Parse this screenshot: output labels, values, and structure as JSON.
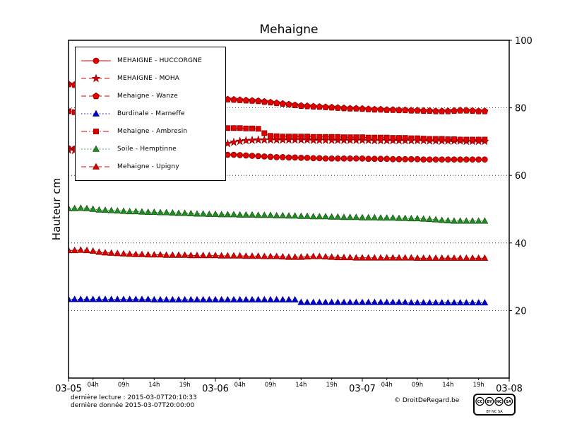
{
  "title": "Mehaigne",
  "y_axis_label": "Hauteur cm",
  "footer": {
    "last_reading": "dernière lecture : 2015-03-07T20:10:33",
    "last_data": "dernière donnée  2015-03-07T20:00:00",
    "copyright": "© DroitDeRegard.be"
  },
  "license_badge": {
    "label": "CC BY-NC-SA",
    "icons": [
      "CC",
      "BY",
      "NC",
      "SA"
    ],
    "subtext": "BY  NC  SA"
  },
  "chart_data": {
    "type": "line",
    "title": "Mehaigne",
    "ylabel": "Hauteur cm",
    "ylim": [
      0,
      100
    ],
    "y_ticks": [
      20,
      40,
      60,
      80,
      100
    ],
    "y_tick_side": "right",
    "grid": "horizontal-dotted",
    "legend_position": "upper-left",
    "x_unit": "hours since 2015-03-05 00:00",
    "x_range_hours": [
      0,
      72
    ],
    "x_axis": {
      "major_ticks": [
        {
          "hour": 0,
          "label": "03-05"
        },
        {
          "hour": 24,
          "label": "03-06"
        },
        {
          "hour": 48,
          "label": "03-07"
        },
        {
          "hour": 72,
          "label": "03-08"
        }
      ],
      "minor_ticks": [
        {
          "hour": 4,
          "label": "04h"
        },
        {
          "hour": 9,
          "label": "09h"
        },
        {
          "hour": 14,
          "label": "14h"
        },
        {
          "hour": 19,
          "label": "19h"
        },
        {
          "hour": 28,
          "label": "04h"
        },
        {
          "hour": 33,
          "label": "09h"
        },
        {
          "hour": 38,
          "label": "14h"
        },
        {
          "hour": 43,
          "label": "19h"
        },
        {
          "hour": 52,
          "label": "04h"
        },
        {
          "hour": 57,
          "label": "09h"
        },
        {
          "hour": 62,
          "label": "14h"
        },
        {
          "hour": 67,
          "label": "19h"
        }
      ]
    },
    "series": [
      {
        "name": "MEHAIGNE - HUCCORGNE",
        "color": "#e00000",
        "edge": "#7f0000",
        "marker": "circle",
        "line": "solid",
        "values": [
          68,
          67.9,
          67.8,
          67.7,
          67.6,
          67.5,
          67.4,
          67.3,
          67.2,
          67.1,
          67,
          66.9,
          66.8,
          66.7,
          66.6,
          66.5,
          66.5,
          66.4,
          66.4,
          66.3,
          66.3,
          66.3,
          66.2,
          66.2,
          66.2,
          66.2,
          66.1,
          66.1,
          66,
          65.9,
          65.8,
          65.7,
          65.6,
          65.5,
          65.4,
          65.4,
          65.3,
          65.3,
          65.2,
          65.2,
          65.1,
          65.1,
          65,
          65,
          65,
          65,
          65,
          65,
          65,
          64.9,
          64.9,
          64.9,
          64.9,
          64.8,
          64.8,
          64.8,
          64.8,
          64.8,
          64.7,
          64.7,
          64.7,
          64.7,
          64.7,
          64.7,
          64.7,
          64.7,
          64.7,
          64.7,
          64.7
        ]
      },
      {
        "name": "MEHAIGNE - MOHA",
        "color": "#e00000",
        "edge": "#7f0000",
        "marker": "star",
        "line": "dashed",
        "values": [
          67.5,
          67.4,
          67.2,
          67.1,
          67,
          66.9,
          66.7,
          66.6,
          66.5,
          66.4,
          66.3,
          66.2,
          66.1,
          66,
          66,
          66,
          66,
          66.1,
          66.3,
          66.6,
          67,
          67.4,
          67.8,
          68.1,
          68.4,
          68.9,
          69.4,
          69.8,
          70.1,
          70.3,
          70.4,
          70.5,
          70.5,
          70.5,
          70.5,
          70.5,
          70.5,
          70.5,
          70.5,
          70.5,
          70.4,
          70.4,
          70.4,
          70.4,
          70.4,
          70.4,
          70.4,
          70.4,
          70.4,
          70.4,
          70.3,
          70.3,
          70.3,
          70.3,
          70.3,
          70.3,
          70.3,
          70.3,
          70.3,
          70.2,
          70.2,
          70.2,
          70.2,
          70.2,
          70.2,
          70.1,
          70.1,
          70.1,
          70.1
        ]
      },
      {
        "name": "Mehaigne - Wanze",
        "color": "#e00000",
        "edge": "#7f0000",
        "marker": "pentagon",
        "line": "dashed",
        "values": [
          87,
          86.8,
          86.6,
          86.4,
          86.2,
          86,
          85.8,
          85.6,
          85.4,
          85.2,
          85,
          84.8,
          84.6,
          84.4,
          84.2,
          84,
          83.8,
          83.6,
          83.4,
          83.2,
          83,
          82.9,
          82.8,
          82.7,
          82.6,
          82.5,
          82.5,
          82.4,
          82.3,
          82.2,
          82.1,
          82,
          81.8,
          81.6,
          81.4,
          81.2,
          81,
          80.8,
          80.6,
          80.5,
          80.4,
          80.3,
          80.2,
          80.1,
          80,
          79.9,
          79.8,
          79.8,
          79.7,
          79.6,
          79.5,
          79.5,
          79.4,
          79.4,
          79.3,
          79.3,
          79.2,
          79.2,
          79.1,
          79.1,
          79,
          79,
          79,
          79.1,
          79.2,
          79.2,
          79.1,
          79,
          79
        ]
      },
      {
        "name": "Burdinale - Marneffe",
        "color": "#0000cd",
        "edge": "#00008b",
        "marker": "triangle",
        "line": "dotted",
        "values": [
          23.3,
          23.3,
          23.3,
          23.3,
          23.3,
          23.3,
          23.3,
          23.3,
          23.3,
          23.3,
          23.3,
          23.3,
          23.3,
          23.3,
          23.2,
          23.2,
          23.2,
          23.2,
          23.2,
          23.2,
          23.2,
          23.2,
          23.2,
          23.2,
          23.2,
          23.2,
          23.2,
          23.2,
          23.2,
          23.2,
          23.2,
          23.2,
          23.2,
          23.2,
          23.2,
          23.2,
          23.2,
          23.2,
          22.4,
          22.4,
          22.4,
          22.4,
          22.4,
          22.4,
          22.4,
          22.4,
          22.4,
          22.4,
          22.4,
          22.4,
          22.4,
          22.4,
          22.4,
          22.4,
          22.4,
          22.4,
          22.3,
          22.3,
          22.3,
          22.3,
          22.3,
          22.3,
          22.3,
          22.3,
          22.3,
          22.3,
          22.3,
          22.3,
          22.3
        ]
      },
      {
        "name": "Mehaigne - Ambresin",
        "color": "#e00000",
        "edge": "#7f0000",
        "marker": "square",
        "line": "dashdot",
        "values": [
          79,
          78.7,
          78.4,
          78.1,
          77.8,
          77.5,
          77.2,
          76.9,
          76.6,
          76.3,
          76,
          75.8,
          75.6,
          75.4,
          75.2,
          75,
          74.8,
          74.7,
          74.6,
          74.5,
          74.4,
          74.3,
          74.2,
          74.2,
          74.1,
          74.1,
          74,
          74,
          74,
          73.9,
          73.9,
          73.8,
          72.5,
          71.7,
          71.6,
          71.5,
          71.5,
          71.5,
          71.5,
          71.5,
          71.4,
          71.4,
          71.4,
          71.4,
          71.4,
          71.3,
          71.3,
          71.3,
          71.3,
          71.2,
          71.2,
          71.2,
          71.2,
          71.1,
          71.1,
          71.1,
          71,
          71,
          70.9,
          70.8,
          70.8,
          70.8,
          70.7,
          70.7,
          70.6,
          70.6,
          70.6,
          70.6,
          70.6
        ]
      },
      {
        "name": "Soile - Hemptinne",
        "color": "#228b22",
        "edge": "#145214",
        "marker": "triangle",
        "line": "dotted",
        "values": [
          50.2,
          50.2,
          50.3,
          50.2,
          50,
          49.8,
          49.7,
          49.6,
          49.5,
          49.4,
          49.3,
          49.3,
          49.2,
          49.1,
          49.1,
          49,
          49,
          48.9,
          48.8,
          48.8,
          48.7,
          48.6,
          48.6,
          48.5,
          48.5,
          48.4,
          48.4,
          48.4,
          48.3,
          48.3,
          48.3,
          48.2,
          48.2,
          48.2,
          48.1,
          48.1,
          48,
          48,
          47.9,
          47.9,
          47.8,
          47.8,
          47.8,
          47.7,
          47.7,
          47.6,
          47.6,
          47.6,
          47.5,
          47.5,
          47.5,
          47.4,
          47.4,
          47.4,
          47.3,
          47.3,
          47.2,
          47.2,
          47.1,
          47,
          46.9,
          46.7,
          46.6,
          46.5,
          46.5,
          46.5,
          46.5,
          46.5,
          46.5
        ]
      },
      {
        "name": "Mehaigne - Upigny",
        "color": "#e00000",
        "edge": "#7f0000",
        "marker": "triangle",
        "line": "dashed",
        "values": [
          37.8,
          37.8,
          37.9,
          37.8,
          37.6,
          37.3,
          37.1,
          37,
          36.9,
          36.8,
          36.7,
          36.6,
          36.6,
          36.5,
          36.5,
          36.5,
          36.4,
          36.4,
          36.4,
          36.4,
          36.3,
          36.3,
          36.3,
          36.3,
          36.3,
          36.2,
          36.2,
          36.2,
          36.2,
          36.1,
          36.1,
          36.1,
          36,
          36,
          36,
          35.9,
          35.8,
          35.8,
          35.8,
          35.9,
          36,
          36,
          35.9,
          35.8,
          35.7,
          35.7,
          35.7,
          35.6,
          35.6,
          35.6,
          35.6,
          35.6,
          35.6,
          35.6,
          35.6,
          35.6,
          35.6,
          35.5,
          35.5,
          35.5,
          35.5,
          35.5,
          35.5,
          35.5,
          35.5,
          35.5,
          35.5,
          35.5,
          35.5
        ]
      }
    ]
  }
}
